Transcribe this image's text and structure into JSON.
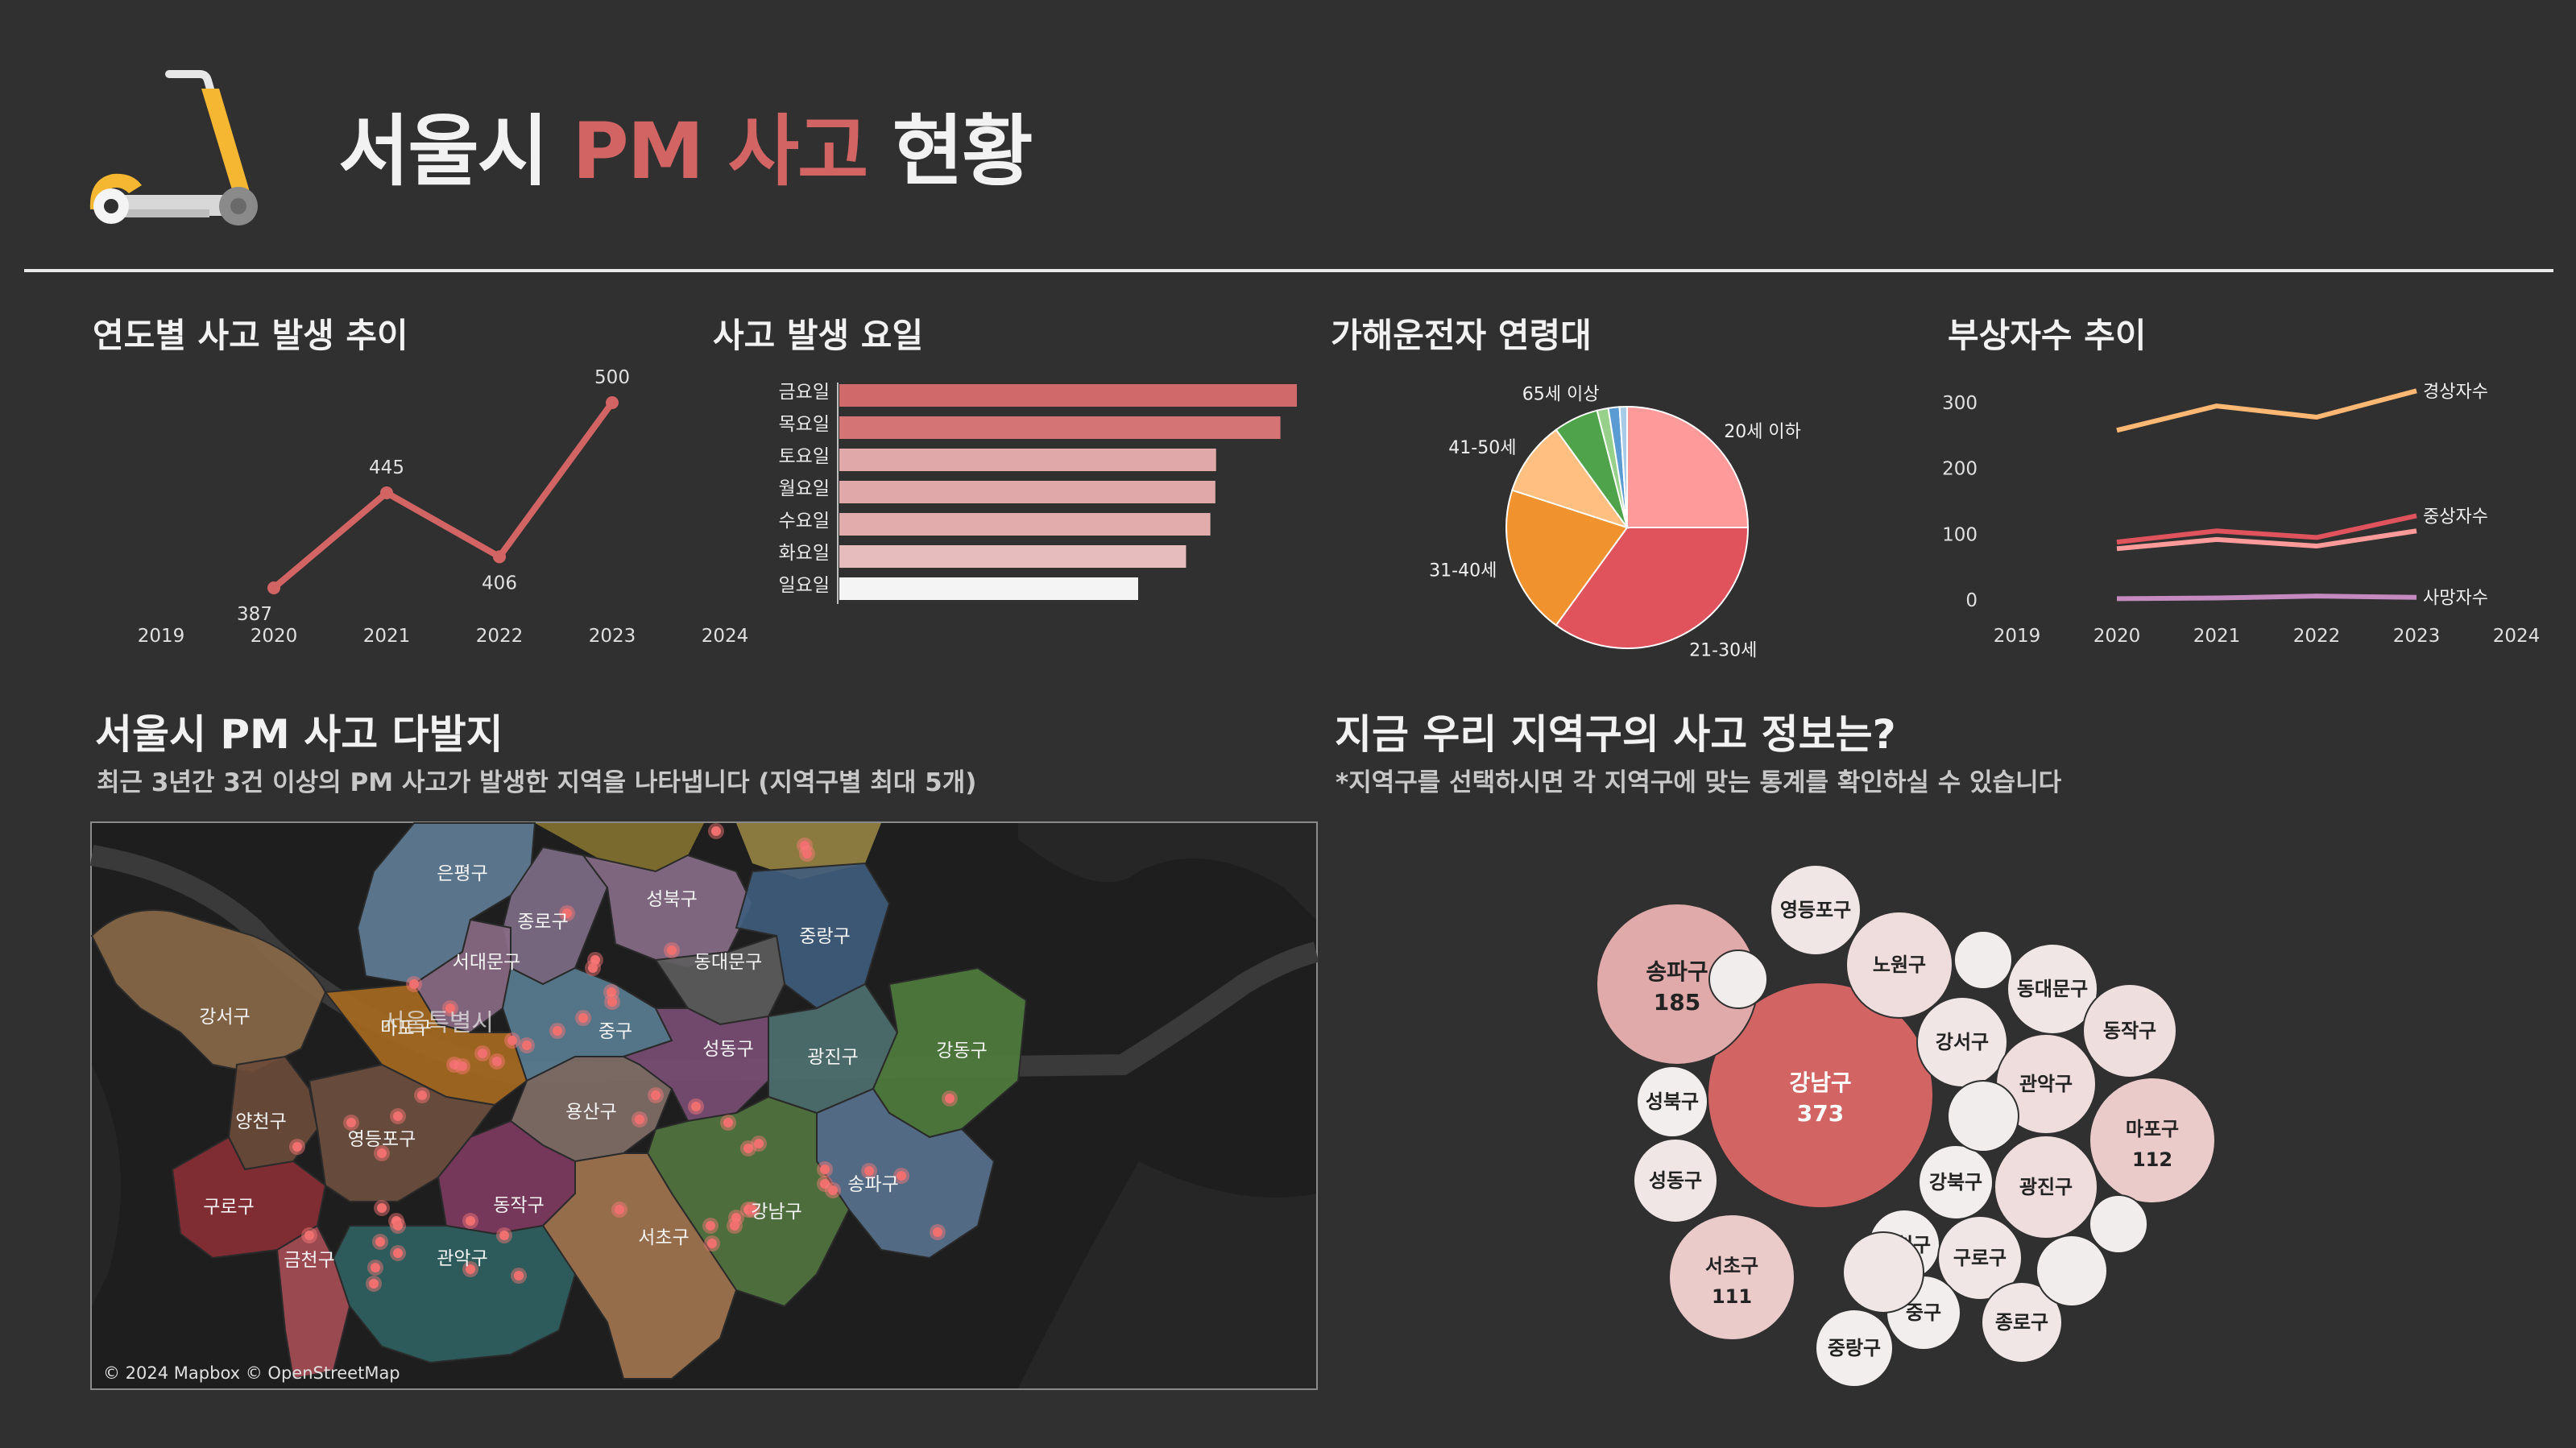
{
  "header": {
    "title_part1": "서울시",
    "title_accent": "PM 사고",
    "title_part2": "현황"
  },
  "colors": {
    "background": "#303030",
    "accent": "#d26464",
    "scooter_yellow": "#f5b731"
  },
  "icons": {
    "logo": "electric-scooter-icon"
  },
  "sections": {
    "yearly": "연도별 사고 발생 추이",
    "weekday": "사고 발생 요일",
    "age": "가해운전자 연령대",
    "injury": "부상자수 추이",
    "map_title": "서울시 PM 사고 다발지",
    "map_subtitle": "최근 3년간 3건 이상의 PM 사고가 발생한 지역을 나타냅니다 (지역구별 최대 5개)",
    "district_title": "지금 우리 지역구의 사고 정보는?",
    "district_subtitle": "*지역구를 선택하시면 각 지역구에 맞는 통계를 확인하실 수 있습니다"
  },
  "chart_data": [
    {
      "type": "line",
      "x_ticks": [
        "2019",
        "2020",
        "2021",
        "2022",
        "2023",
        "2024"
      ],
      "x": [
        "2020",
        "2021",
        "2022",
        "2023"
      ],
      "values": [
        387,
        445,
        406,
        500
      ],
      "color": "#d26464"
    },
    {
      "type": "bar",
      "orientation": "horizontal",
      "categories": [
        "금요일",
        "목요일",
        "토요일",
        "월요일",
        "수요일",
        "화요일",
        "일요일"
      ],
      "values": [
        640,
        617,
        527,
        526,
        519,
        485,
        418
      ],
      "colors": [
        "#d06a6a",
        "#d47474",
        "#e0a8a8",
        "#e0a8a8",
        "#e2acac",
        "#e6bcbc",
        "#f4f4f4"
      ]
    },
    {
      "type": "pie",
      "labels": [
        "20세 이하",
        "21-30세",
        "31-40세",
        "41-50세",
        "",
        "65세 이상",
        "",
        ""
      ],
      "values": [
        25,
        35,
        20,
        10,
        6,
        1.5,
        1.5,
        1
      ],
      "colors": [
        "#ff9a9a",
        "#e0525c",
        "#f0922e",
        "#ffbf80",
        "#4fa34a",
        "#96d08a",
        "#5a9bd4",
        "#a8cce8"
      ]
    },
    {
      "type": "line",
      "x_ticks": [
        "2019",
        "2020",
        "2021",
        "2022",
        "2023",
        "2024"
      ],
      "x": [
        "2020",
        "2021",
        "2022",
        "2023"
      ],
      "y_ticks": [
        "0",
        "100",
        "200",
        "300"
      ],
      "ylim": [
        0,
        300
      ],
      "series": [
        {
          "name": "경상자수",
          "values": [
            258,
            295,
            278,
            318
          ],
          "color": "#ffb774"
        },
        {
          "name": "중상자수",
          "values": [
            88,
            105,
            95,
            128
          ],
          "color": "#e0525c"
        },
        {
          "name": "",
          "values": [
            78,
            92,
            82,
            105
          ],
          "color": "#ff9a9a"
        },
        {
          "name": "사망자수",
          "values": [
            2,
            3,
            6,
            4
          ],
          "color": "#c58ac0"
        }
      ]
    },
    {
      "type": "bubble",
      "bubbles": [
        {
          "name": "강남구",
          "value": "373",
          "fill": "#d26464"
        },
        {
          "name": "송파구",
          "value": "185",
          "fill": "#e0aaaa"
        },
        {
          "name": "마포구",
          "value": "112",
          "fill": "#ebcaca"
        },
        {
          "name": "서초구",
          "value": "111",
          "fill": "#ebcaca"
        },
        {
          "name": "영등포구",
          "value": "",
          "fill": "#f1e6e6"
        },
        {
          "name": "노원구",
          "value": "",
          "fill": "#efdcdc"
        },
        {
          "name": "동대문구",
          "value": "",
          "fill": "#f1e6e6"
        },
        {
          "name": "동작구",
          "value": "",
          "fill": "#efdede"
        },
        {
          "name": "강서구",
          "value": "",
          "fill": "#f1e6e6"
        },
        {
          "name": "관악구",
          "value": "",
          "fill": "#efdcdc"
        },
        {
          "name": "성북구",
          "value": "",
          "fill": "#f3eeee"
        },
        {
          "name": "성동구",
          "value": "",
          "fill": "#f1e6e6"
        },
        {
          "name": "강북구",
          "value": "",
          "fill": "#f3eeee"
        },
        {
          "name": "광진구",
          "value": "",
          "fill": "#efdcdc"
        },
        {
          "name": "금천구",
          "value": "",
          "fill": "#f3eeee"
        },
        {
          "name": "구로구",
          "value": "",
          "fill": "#f1e6e6"
        },
        {
          "name": "중구",
          "value": "",
          "fill": "#f3eeee"
        },
        {
          "name": "종로구",
          "value": "",
          "fill": "#f1e6e6"
        },
        {
          "name": "중랑구",
          "value": "",
          "fill": "#f3eeee"
        },
        {
          "name": "",
          "value": "",
          "fill": "#f2eded"
        },
        {
          "name": "",
          "value": "",
          "fill": "#f2eded"
        },
        {
          "name": "",
          "value": "",
          "fill": "#f2eded"
        },
        {
          "name": "",
          "value": "",
          "fill": "#f0e6e6"
        },
        {
          "name": "",
          "value": "",
          "fill": "#f2eded"
        },
        {
          "name": "",
          "value": "",
          "fill": "#f2eded"
        }
      ]
    }
  ],
  "map": {
    "city_label": "서울특별시",
    "credit": "© 2024 Mapbox © OpenStreetMap",
    "districts": [
      {
        "name": "은평구",
        "color": "#5f7d97"
      },
      {
        "name": "종로구",
        "color": "#7e6d87"
      },
      {
        "name": "성북구",
        "color": "#8a6e8a"
      },
      {
        "name": "중랑구",
        "color": "#3f5d7d"
      },
      {
        "name": "서대문구",
        "color": "#8a6b85"
      },
      {
        "name": "동대문구",
        "color": "#5d5d5d"
      },
      {
        "name": "강서구",
        "color": "#8a6848"
      },
      {
        "name": "마포구",
        "color": "#a86a20"
      },
      {
        "name": "중구",
        "color": "#5a7d93"
      },
      {
        "name": "성동구",
        "color": "#7a4e74"
      },
      {
        "name": "광진구",
        "color": "#4e7070"
      },
      {
        "name": "강동구",
        "color": "#4f7d3d"
      },
      {
        "name": "양천구",
        "color": "#6d4b3a"
      },
      {
        "name": "영등포구",
        "color": "#6e4f3e"
      },
      {
        "name": "용산구",
        "color": "#826e68"
      },
      {
        "name": "송파구",
        "color": "#58728e"
      },
      {
        "name": "구로구",
        "color": "#8a2d35"
      },
      {
        "name": "동작구",
        "color": "#7e3a60"
      },
      {
        "name": "강남구",
        "color": "#52773f"
      },
      {
        "name": "서초구",
        "color": "#a27650"
      },
      {
        "name": "금천구",
        "color": "#a84e55"
      },
      {
        "name": "관악구",
        "color": "#2f6060"
      }
    ]
  }
}
